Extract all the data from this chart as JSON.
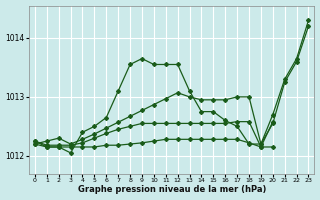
{
  "title": "Graphe pression niveau de la mer (hPa)",
  "bg_color": "#cceaea",
  "grid_color": "#ffffff",
  "line_color": "#1a5c1a",
  "xlim": [
    -0.5,
    23.5
  ],
  "ylim": [
    1011.7,
    1014.55
  ],
  "yticks": [
    1012,
    1013,
    1014
  ],
  "xticks": [
    0,
    1,
    2,
    3,
    4,
    5,
    6,
    7,
    8,
    9,
    10,
    11,
    12,
    13,
    14,
    15,
    16,
    17,
    18,
    19,
    20,
    21,
    22,
    23
  ],
  "s1_x": [
    0,
    1,
    2,
    3,
    4,
    5,
    6,
    7,
    8,
    9,
    10,
    11,
    12,
    13,
    14,
    15,
    16,
    17,
    18,
    19,
    20,
    21,
    22,
    23
  ],
  "s1_y": [
    1012.25,
    1012.15,
    1012.15,
    1012.05,
    1012.4,
    1012.5,
    1012.65,
    1013.1,
    1013.55,
    1013.65,
    1013.55,
    1013.55,
    1013.55,
    1013.1,
    1012.75,
    1012.75,
    1012.6,
    1012.5,
    1012.2,
    1012.2,
    1012.55,
    1013.25,
    1013.6,
    1014.2
  ],
  "s2_x": [
    0,
    1,
    2,
    3,
    4,
    5,
    6,
    7,
    8,
    9,
    10,
    11,
    12,
    13,
    14,
    15,
    16,
    17,
    18,
    19,
    20,
    21,
    22,
    23
  ],
  "s2_y": [
    1012.2,
    1012.25,
    1012.3,
    1012.2,
    1012.28,
    1012.37,
    1012.47,
    1012.57,
    1012.67,
    1012.77,
    1012.87,
    1012.97,
    1013.07,
    1013.0,
    1012.95,
    1012.95,
    1012.95,
    1013.0,
    1013.0,
    1012.2,
    1012.7,
    1013.3,
    1013.65,
    1014.3
  ],
  "s3_x": [
    0,
    1,
    2,
    3,
    4,
    5,
    6,
    7,
    8,
    9,
    10,
    11,
    12,
    13,
    14,
    15,
    16,
    17,
    18,
    19,
    20
  ],
  "s3_y": [
    1012.2,
    1012.15,
    1012.15,
    1012.15,
    1012.15,
    1012.15,
    1012.18,
    1012.18,
    1012.2,
    1012.22,
    1012.25,
    1012.28,
    1012.28,
    1012.28,
    1012.28,
    1012.28,
    1012.28,
    1012.28,
    1012.22,
    1012.15,
    1012.15
  ],
  "s4_x": [
    0,
    1,
    2,
    3,
    4,
    5,
    6,
    7,
    8,
    9,
    10,
    11,
    12,
    13,
    14,
    15,
    16,
    17,
    18,
    19,
    20
  ],
  "s4_y": [
    1012.25,
    1012.18,
    1012.18,
    1012.18,
    1012.22,
    1012.3,
    1012.38,
    1012.45,
    1012.5,
    1012.55,
    1012.55,
    1012.55,
    1012.55,
    1012.55,
    1012.55,
    1012.55,
    1012.55,
    1012.58,
    1012.58,
    1012.15,
    1012.58
  ]
}
